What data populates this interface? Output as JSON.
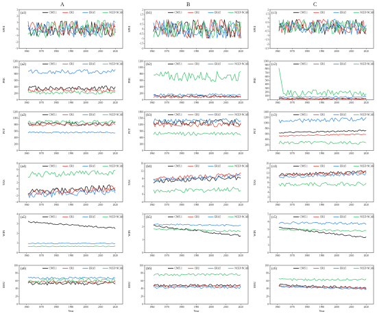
{
  "figure": {
    "column_labels": [
      "A",
      "B",
      "C"
    ],
    "legend_entries": [
      "CN05.1",
      "CRU",
      "ERA5",
      "NCEP-NCAR"
    ],
    "series_colors": {
      "CN05.1": "#1a1a1a",
      "CRU": "#e8463a",
      "ERA5": "#3b8ee8",
      "NCEP-NCAR": "#40c870"
    },
    "x_ticks": [
      "1960",
      "1970",
      "1980",
      "1990",
      "2000",
      "2010",
      "2020"
    ],
    "x_label": "Year"
  },
  "chart_data": [
    {
      "id": "a1",
      "label": "(a1)",
      "ylabel": "SPEI",
      "type": "line",
      "ylim": [
        -3,
        3
      ],
      "yticks": [
        "-3",
        "-2",
        "-1",
        "0",
        "1",
        "2",
        "3"
      ],
      "x": [
        1961,
        2020
      ],
      "series": [
        {
          "name": "CN05.1",
          "mean": 0,
          "amp": 1.3,
          "trend": 0
        },
        {
          "name": "CRU",
          "mean": 0,
          "amp": 1.3,
          "trend": 0
        },
        {
          "name": "ERA5",
          "mean": 0,
          "amp": 1.3,
          "trend": 0
        },
        {
          "name": "NCEP-NCAR",
          "mean": 0,
          "amp": 1.4,
          "trend": 0
        }
      ]
    },
    {
      "id": "b1",
      "label": "(b1)",
      "ylabel": "SPEI",
      "type": "line",
      "ylim": [
        -2,
        2
      ],
      "yticks": [
        "-2",
        "-1.5",
        "-1",
        "-0.5",
        "0",
        "0.5",
        "1",
        "1.5",
        "2"
      ],
      "x": [
        1961,
        2020
      ],
      "series": [
        {
          "name": "CN05.1",
          "mean": 0,
          "amp": 1.0,
          "trend": 0
        },
        {
          "name": "CRU",
          "mean": 0,
          "amp": 1.0,
          "trend": 0
        },
        {
          "name": "ERA5",
          "mean": 0,
          "amp": 1.0,
          "trend": 0
        },
        {
          "name": "NCEP-NCAR",
          "mean": 0,
          "amp": 1.0,
          "trend": 0
        }
      ]
    },
    {
      "id": "c1",
      "label": "(c1)",
      "ylabel": "SPEI",
      "type": "line",
      "ylim": [
        -2.5,
        2
      ],
      "yticks": [
        "-2.5",
        "-2",
        "-1.5",
        "-1",
        "-0.5",
        "0",
        "0.5",
        "1",
        "1.5",
        "2"
      ],
      "x": [
        1961,
        2020
      ],
      "series": [
        {
          "name": "CN05.1",
          "mean": 0,
          "amp": 0.9,
          "trend": 0
        },
        {
          "name": "CRU",
          "mean": 0,
          "amp": 0.9,
          "trend": 0
        },
        {
          "name": "ERA5",
          "mean": 0,
          "amp": 0.9,
          "trend": 0
        },
        {
          "name": "NCEP-NCAR",
          "mean": 0,
          "amp": 0.9,
          "trend": 0
        }
      ]
    },
    {
      "id": "a2",
      "label": "(a2)",
      "ylabel": "PRE",
      "type": "line",
      "ylim": [
        0,
        1200
      ],
      "yticks": [
        "0",
        "200",
        "400",
        "600",
        "800",
        "1000",
        "1200"
      ],
      "x": [
        1961,
        2020
      ],
      "series": [
        {
          "name": "CN05.1",
          "mean": 360,
          "amp": 80,
          "trend": 0
        },
        {
          "name": "CRU",
          "mean": 290,
          "amp": 70,
          "trend": 0
        },
        {
          "name": "ERA5",
          "mean": 870,
          "amp": 70,
          "trend": 0
        },
        {
          "name": "NCEP-NCAR",
          "mean": 220,
          "amp": 50,
          "trend": 0
        }
      ]
    },
    {
      "id": "b2",
      "label": "(b2)",
      "ylabel": "PRE",
      "type": "line",
      "ylim": [
        0,
        1200
      ],
      "yticks": [
        "0",
        "200",
        "400",
        "600",
        "800",
        "1000",
        "1200"
      ],
      "x": [
        1961,
        2020
      ],
      "series": [
        {
          "name": "CN05.1",
          "mean": 110,
          "amp": 40,
          "trend": 0
        },
        {
          "name": "CRU",
          "mean": 90,
          "amp": 35,
          "trend": 0
        },
        {
          "name": "ERA5",
          "mean": 150,
          "amp": 40,
          "trend": 0
        },
        {
          "name": "NCEP-NCAR",
          "mean": 720,
          "amp": 160,
          "trend": 0
        }
      ]
    },
    {
      "id": "c2",
      "label": "(c2)",
      "ylabel": "PRE",
      "type": "line",
      "ylim": [
        0,
        1000
      ],
      "yticks": [
        "0",
        "100",
        "200",
        "300",
        "400",
        "500",
        "600",
        "700",
        "800",
        "900",
        "1000"
      ],
      "x": [
        1961,
        2020
      ],
      "series": [
        {
          "name": "CN05.1",
          "mean": 30,
          "amp": 15,
          "trend": 0
        },
        {
          "name": "CRU",
          "mean": 25,
          "amp": 12,
          "trend": 0
        },
        {
          "name": "ERA5",
          "mean": 70,
          "amp": 20,
          "trend": 0
        },
        {
          "name": "NCEP-NCAR",
          "mean": 180,
          "amp": 90,
          "trend": 0,
          "spike": [
            2,
            820
          ]
        }
      ]
    },
    {
      "id": "a3",
      "label": "(a3)",
      "ylabel": "PET",
      "type": "line",
      "ylim": [
        0,
        1200
      ],
      "yticks": [
        "0",
        "200",
        "400",
        "600",
        "800",
        "1000",
        "1200"
      ],
      "x": [
        1961,
        2020
      ],
      "series": [
        {
          "name": "CN05.1",
          "mean": 830,
          "amp": 60,
          "trend": 0
        },
        {
          "name": "CRU",
          "mean": 800,
          "amp": 50,
          "trend": 0
        },
        {
          "name": "ERA5",
          "mean": 560,
          "amp": 25,
          "trend": 0
        },
        {
          "name": "NCEP-NCAR",
          "mean": 880,
          "amp": 60,
          "trend": 0
        }
      ]
    },
    {
      "id": "b3",
      "label": "(b3)",
      "ylabel": "PET",
      "type": "line",
      "ylim": [
        0,
        1800
      ],
      "yticks": [
        "0",
        "300",
        "600",
        "900",
        "1200",
        "1500",
        "1800"
      ],
      "x": [
        1961,
        2020
      ],
      "series": [
        {
          "name": "CN05.1",
          "mean": 1300,
          "amp": 140,
          "trend": 0
        },
        {
          "name": "CRU",
          "mean": 1200,
          "amp": 110,
          "trend": 0
        },
        {
          "name": "ERA5",
          "mean": 1380,
          "amp": 100,
          "trend": 0
        },
        {
          "name": "NCEP-NCAR",
          "mean": 780,
          "amp": 90,
          "trend": 0
        }
      ]
    },
    {
      "id": "c3",
      "label": "(c3)",
      "ylabel": "PET",
      "type": "line",
      "ylim": [
        0,
        1400
      ],
      "yticks": [
        "0",
        "200",
        "400",
        "600",
        "800",
        "1000",
        "1200",
        "1400"
      ],
      "x": [
        1961,
        2020
      ],
      "series": [
        {
          "name": "CN05.1",
          "mean": 680,
          "amp": 25,
          "trend": 80
        },
        {
          "name": "CRU",
          "mean": 560,
          "amp": 20,
          "trend": 60
        },
        {
          "name": "ERA5",
          "mean": 1100,
          "amp": 70,
          "trend": 80
        },
        {
          "name": "NCEP-NCAR",
          "mean": 280,
          "amp": 60,
          "trend": 0
        }
      ]
    },
    {
      "id": "a4",
      "label": "(a4)",
      "ylabel": "TAS",
      "type": "line",
      "ylim": [
        -4,
        8
      ],
      "yticks": [
        "-4",
        "-2",
        "0",
        "2",
        "4",
        "6",
        "8"
      ],
      "x": [
        1961,
        2020
      ],
      "series": [
        {
          "name": "CN05.1",
          "mean": -0.3,
          "amp": 1.0,
          "trend": 1.5
        },
        {
          "name": "CRU",
          "mean": -0.6,
          "amp": 1.0,
          "trend": 1.5
        },
        {
          "name": "ERA5",
          "mean": -1.4,
          "amp": 0.9,
          "trend": 1.3
        },
        {
          "name": "NCEP-NCAR",
          "mean": 4.8,
          "amp": 0.9,
          "trend": 0.6
        }
      ]
    },
    {
      "id": "b4",
      "label": "(b4)",
      "ylabel": "TAS",
      "type": "line",
      "ylim": [
        -4,
        16
      ],
      "yticks": [
        "-4",
        "0",
        "4",
        "8",
        "12",
        "16"
      ],
      "x": [
        1961,
        2020
      ],
      "series": [
        {
          "name": "CN05.1",
          "mean": 7.5,
          "amp": 1.2,
          "trend": 2.0
        },
        {
          "name": "CRU",
          "mean": 9.0,
          "amp": 1.1,
          "trend": 2.0
        },
        {
          "name": "ERA5",
          "mean": 8.3,
          "amp": 1.0,
          "trend": 2.0
        },
        {
          "name": "NCEP-NCAR",
          "mean": 2.0,
          "amp": 1.2,
          "trend": 1.2
        }
      ]
    },
    {
      "id": "c4",
      "label": "(c4)",
      "ylabel": "TAS",
      "type": "line",
      "ylim": [
        0,
        16
      ],
      "yticks": [
        "0",
        "2",
        "4",
        "6",
        "8",
        "10",
        "12",
        "14",
        "16"
      ],
      "x": [
        1961,
        2020
      ],
      "series": [
        {
          "name": "CN05.1",
          "mean": 11.8,
          "amp": 0.6,
          "trend": 1.2
        },
        {
          "name": "CRU",
          "mean": 11.6,
          "amp": 0.6,
          "trend": 1.2
        },
        {
          "name": "ERA5",
          "mean": 11.0,
          "amp": 0.6,
          "trend": 1.2
        },
        {
          "name": "NCEP-NCAR",
          "mean": 7.3,
          "amp": 0.8,
          "trend": 0.5
        }
      ]
    },
    {
      "id": "a5",
      "label": "(a5)",
      "ylabel": "WIN",
      "type": "line",
      "ylim": [
        0,
        4
      ],
      "yticks": [
        "0",
        "1",
        "2",
        "3",
        "4"
      ],
      "x": [
        1961,
        2020
      ],
      "series": [
        {
          "name": "CN05.1",
          "mean": 2.85,
          "amp": 0.08,
          "trend": -0.65
        },
        {
          "name": "CRU",
          "mean": 0,
          "amp": 0,
          "trend": 0,
          "hidden": true
        },
        {
          "name": "ERA5",
          "mean": 0.95,
          "amp": 0.05,
          "trend": 0
        },
        {
          "name": "NCEP-NCAR",
          "mean": 0.65,
          "amp": 0.04,
          "trend": 0
        }
      ]
    },
    {
      "id": "b5",
      "label": "(b5)",
      "ylabel": "WIN",
      "type": "line",
      "ylim": [
        0,
        3
      ],
      "yticks": [
        "0",
        "1",
        "2",
        "3"
      ],
      "x": [
        1961,
        2020
      ],
      "series": [
        {
          "name": "CN05.1",
          "mean": 1.7,
          "amp": 0.08,
          "trend": -0.8
        },
        {
          "name": "CRU",
          "mean": 0,
          "amp": 0,
          "trend": 0,
          "hidden": true
        },
        {
          "name": "ERA5",
          "mean": 2.15,
          "amp": 0.06,
          "trend": -0.1
        },
        {
          "name": "NCEP-NCAR",
          "mean": 1.75,
          "amp": 0.07,
          "trend": -0.2
        }
      ]
    },
    {
      "id": "c5",
      "label": "(c5)",
      "ylabel": "WIN",
      "type": "line",
      "ylim": [
        0,
        5
      ],
      "yticks": [
        "0",
        "1",
        "2",
        "3",
        "4",
        "5"
      ],
      "x": [
        1961,
        2020
      ],
      "series": [
        {
          "name": "CN05.1",
          "mean": 2.6,
          "amp": 0.1,
          "trend": -1.3
        },
        {
          "name": "CRU",
          "mean": 0,
          "amp": 0,
          "trend": 0,
          "hidden": true
        },
        {
          "name": "ERA5",
          "mean": 3.8,
          "amp": 0.15,
          "trend": -0.1
        },
        {
          "name": "NCEP-NCAR",
          "mean": 2.9,
          "amp": 0.12,
          "trend": -0.2
        }
      ]
    },
    {
      "id": "a6",
      "label": "(a6)",
      "ylabel": "RHU",
      "type": "line",
      "ylim": [
        0,
        100
      ],
      "yticks": [
        "0",
        "20",
        "40",
        "60",
        "80",
        "100"
      ],
      "x": [
        1961,
        2020
      ],
      "series": [
        {
          "name": "CN05.1",
          "mean": 54,
          "amp": 5,
          "trend": 0
        },
        {
          "name": "CRU",
          "mean": 57,
          "amp": 4,
          "trend": 0
        },
        {
          "name": "ERA5",
          "mean": 67,
          "amp": 3,
          "trend": 0
        },
        {
          "name": "NCEP-NCAR",
          "mean": 60,
          "amp": 6,
          "trend": 0
        }
      ]
    },
    {
      "id": "b6",
      "label": "(b6)",
      "ylabel": "RHU",
      "type": "line",
      "ylim": [
        0,
        100
      ],
      "yticks": [
        "0",
        "20",
        "40",
        "60",
        "80",
        "100"
      ],
      "x": [
        1961,
        2020
      ],
      "series": [
        {
          "name": "CN05.1",
          "mean": 48,
          "amp": 3,
          "trend": 0
        },
        {
          "name": "CRU",
          "mean": 46,
          "amp": 3,
          "trend": 0
        },
        {
          "name": "ERA5",
          "mean": 43,
          "amp": 3,
          "trend": 0
        },
        {
          "name": "NCEP-NCAR",
          "mean": 76,
          "amp": 3,
          "trend": 0
        }
      ]
    },
    {
      "id": "c6",
      "label": "(c6)",
      "ylabel": "RHU",
      "type": "line",
      "ylim": [
        0,
        100
      ],
      "yticks": [
        "0",
        "20",
        "40",
        "60",
        "80",
        "100"
      ],
      "x": [
        1961,
        2020
      ],
      "series": [
        {
          "name": "CN05.1",
          "mean": 45,
          "amp": 3,
          "trend": -8
        },
        {
          "name": "CRU",
          "mean": 44,
          "amp": 2,
          "trend": -4
        },
        {
          "name": "ERA5",
          "mean": 42,
          "amp": 2,
          "trend": -6
        },
        {
          "name": "NCEP-NCAR",
          "mean": 63,
          "amp": 3,
          "trend": 0
        }
      ]
    }
  ]
}
